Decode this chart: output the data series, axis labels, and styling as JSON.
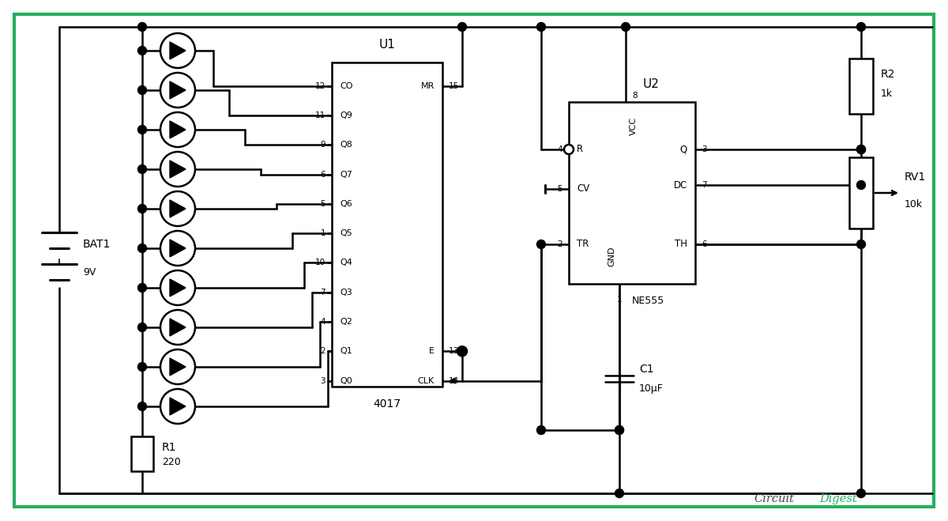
{
  "bg_color": "#ffffff",
  "border_color": "#27ae60",
  "lw": 1.8,
  "bat_label": "BAT1",
  "bat_voltage": "9V",
  "r1_label": "R1",
  "r1_value": "220",
  "r2_label": "R2",
  "r2_value": "1k",
  "rv1_label": "RV1",
  "rv1_value": "10k",
  "c1_label": "C1",
  "c1_value": "10μF",
  "u1_label": "U1",
  "u1_sublabel": "4017",
  "u2_label": "U2",
  "u2_sublabel": "NE555",
  "wm1": "Circuit",
  "wm2": "Digest",
  "wm1_color": "#444444",
  "wm2_color": "#27ae60"
}
